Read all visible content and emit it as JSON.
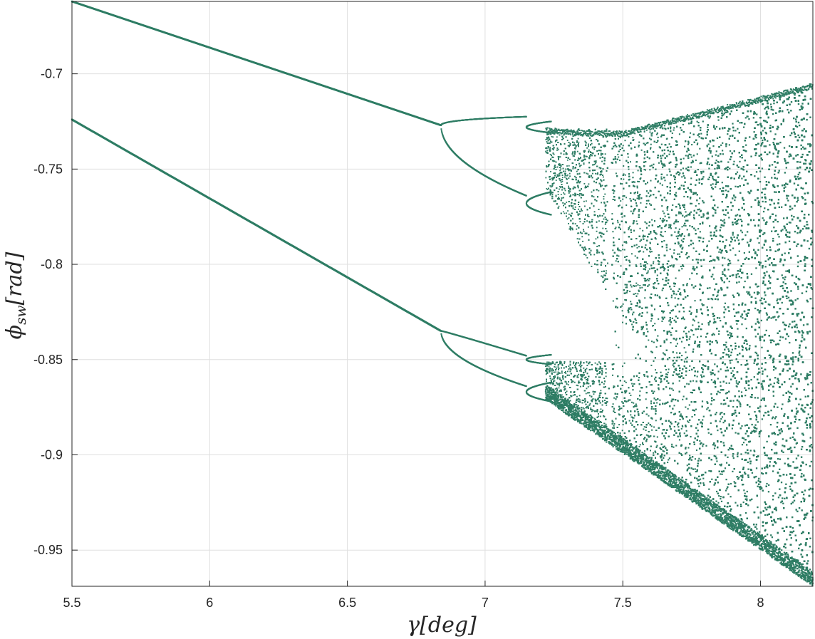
{
  "chart_data": {
    "type": "scatter",
    "title": "",
    "xlabel_parts": {
      "main": "γ",
      "rest": "[deg]"
    },
    "ylabel_parts": {
      "main": "ϕ",
      "sub": "sw",
      "rest": "[rad]"
    },
    "xlim": [
      5.5,
      8.19
    ],
    "ylim": [
      -0.969,
      -0.662
    ],
    "xticks": [
      5.5,
      6,
      6.5,
      7,
      7.5,
      8
    ],
    "xtick_labels": [
      "5.5",
      "6",
      "6.5",
      "7",
      "7.5",
      "8"
    ],
    "yticks": [
      -0.7,
      -0.75,
      -0.8,
      -0.85,
      -0.9,
      -0.95
    ],
    "ytick_labels": [
      "-0.7",
      "-0.75",
      "-0.8",
      "-0.85",
      "-0.9",
      "-0.95"
    ],
    "grid": true,
    "marker_color": "#2e7d64",
    "series": [
      {
        "description_points": [
          {
            "x": 5.5,
            "y": -0.662
          },
          {
            "x": 6.0,
            "y": -0.686
          },
          {
            "x": 6.5,
            "y": -0.709
          },
          {
            "x": 6.84,
            "y": -0.727
          },
          {
            "x": 5.5,
            "y": -0.724
          },
          {
            "x": 6.0,
            "y": -0.765
          },
          {
            "x": 6.5,
            "y": -0.806
          },
          {
            "x": 6.84,
            "y": -0.835
          },
          {
            "x": 7.15,
            "y": -0.727
          },
          {
            "x": 7.15,
            "y": -0.764
          },
          {
            "x": 7.15,
            "y": -0.849
          },
          {
            "x": 7.15,
            "y": -0.864
          },
          {
            "x": 7.5,
            "y": -0.73
          },
          {
            "x": 7.5,
            "y": -0.856
          },
          {
            "x": 7.5,
            "y": -0.895
          },
          {
            "x": 8.0,
            "y": -0.72
          },
          {
            "x": 8.19,
            "y": -0.705
          },
          {
            "x": 8.19,
            "y": -0.969
          }
        ]
      }
    ]
  }
}
